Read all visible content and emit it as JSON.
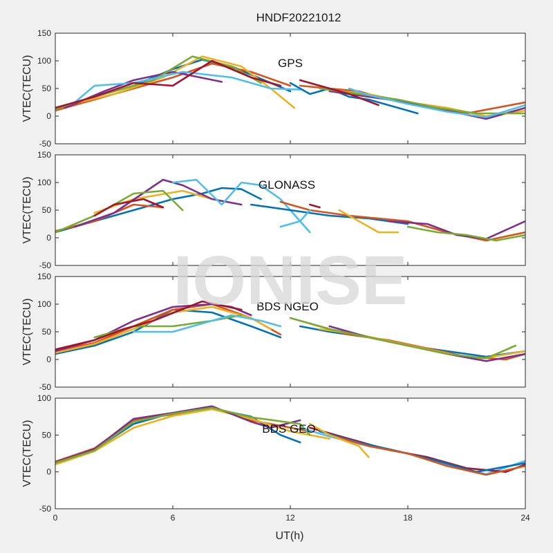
{
  "title": "HNDF20221012",
  "watermark": "IONISE",
  "xlabel": "UT(h)",
  "colors": [
    "#0072bd",
    "#d95319",
    "#edb120",
    "#7e2f8e",
    "#77ac30",
    "#4dbeee",
    "#a2142f"
  ],
  "chart_data": [
    {
      "type": "line",
      "label": "GPS",
      "ylabel": "VTEC(TECU)",
      "xlim": [
        0,
        24
      ],
      "ylim": [
        -50,
        150
      ],
      "xticks": [
        0,
        6,
        12,
        18,
        24
      ],
      "yticks": [
        -50,
        0,
        50,
        100,
        150
      ],
      "series": [
        {
          "x": [
            0,
            2,
            4,
            6,
            7.5,
            9,
            11,
            12
          ],
          "y": [
            12,
            35,
            55,
            85,
            102,
            90,
            60,
            45
          ]
        },
        {
          "x": [
            0,
            2,
            4,
            6,
            8,
            10,
            12
          ],
          "y": [
            10,
            30,
            50,
            70,
            95,
            80,
            55
          ]
        },
        {
          "x": [
            0,
            3,
            5.5,
            7.5,
            9.5,
            11,
            12.2
          ],
          "y": [
            15,
            40,
            70,
            108,
            90,
            50,
            15
          ]
        },
        {
          "x": [
            0.5,
            2.5,
            4,
            6,
            8.5
          ],
          "y": [
            15,
            45,
            65,
            80,
            62
          ]
        },
        {
          "x": [
            0,
            1,
            2.5,
            5,
            7,
            9,
            10.5
          ],
          "y": [
            12,
            25,
            40,
            65,
            108,
            90,
            60
          ]
        },
        {
          "x": [
            1,
            2,
            4,
            6.5,
            9,
            11,
            12.5
          ],
          "y": [
            25,
            55,
            60,
            80,
            70,
            50,
            48
          ]
        },
        {
          "x": [
            0,
            2,
            4,
            6,
            8,
            10,
            11.5
          ],
          "y": [
            15,
            35,
            60,
            55,
            100,
            70,
            55
          ]
        },
        {
          "x": [
            12,
            13,
            14,
            15,
            16,
            17,
            18.5
          ],
          "y": [
            60,
            40,
            50,
            35,
            30,
            20,
            5
          ]
        },
        {
          "x": [
            12.5,
            14,
            15.5,
            17,
            19,
            21,
            24
          ],
          "y": [
            55,
            50,
            45,
            30,
            20,
            5,
            25
          ]
        },
        {
          "x": [
            13,
            14.5,
            16,
            18,
            20,
            22,
            24
          ],
          "y": [
            60,
            45,
            40,
            25,
            15,
            0,
            10
          ]
        },
        {
          "x": [
            14,
            16,
            18,
            20,
            22,
            24
          ],
          "y": [
            45,
            35,
            25,
            10,
            -5,
            15
          ]
        },
        {
          "x": [
            13.5,
            15.5,
            17.5,
            19.5,
            21.5,
            24
          ],
          "y": [
            50,
            40,
            30,
            15,
            5,
            5
          ]
        },
        {
          "x": [
            15,
            16,
            17,
            18,
            20,
            22,
            24
          ],
          "y": [
            50,
            38,
            30,
            22,
            8,
            -2,
            20
          ]
        },
        {
          "x": [
            12.5,
            13.5,
            15,
            16.5
          ],
          "y": [
            65,
            55,
            40,
            20
          ]
        }
      ]
    },
    {
      "type": "line",
      "label": "GLONASS",
      "ylabel": "VTEC(TECU)",
      "xlim": [
        0,
        24
      ],
      "ylim": [
        -50,
        150
      ],
      "xticks": [
        0,
        6,
        12,
        18,
        24
      ],
      "yticks": [
        -50,
        0,
        50,
        100,
        150
      ],
      "series": [
        {
          "x": [
            0,
            2,
            4,
            6,
            7.5,
            8.5,
            9.5,
            10.5
          ],
          "y": [
            10,
            30,
            50,
            70,
            80,
            90,
            88,
            70
          ]
        },
        {
          "x": [
            0,
            2,
            4,
            5.5
          ],
          "y": [
            12,
            30,
            60,
            55
          ]
        },
        {
          "x": [
            2,
            4,
            6.5,
            8
          ],
          "y": [
            45,
            70,
            85,
            70
          ]
        },
        {
          "x": [
            1,
            3,
            5.5,
            6.5,
            8,
            9.5
          ],
          "y": [
            20,
            45,
            105,
            95,
            70,
            60
          ]
        },
        {
          "x": [
            0,
            2,
            4,
            5.5,
            6.5
          ],
          "y": [
            10,
            40,
            80,
            85,
            50
          ]
        },
        {
          "x": [
            6,
            7.2,
            8.5,
            9.5,
            10.5,
            11.5,
            13
          ],
          "y": [
            100,
            105,
            60,
            100,
            95,
            70,
            10
          ]
        },
        {
          "x": [
            2,
            3,
            4.5,
            5.5
          ],
          "y": [
            40,
            60,
            70,
            55
          ]
        },
        {
          "x": [
            10,
            12,
            14,
            16,
            18
          ],
          "y": [
            60,
            50,
            40,
            35,
            25
          ]
        },
        {
          "x": [
            11.5,
            13,
            15,
            16.5,
            18,
            20,
            22,
            24
          ],
          "y": [
            65,
            50,
            40,
            35,
            30,
            10,
            -5,
            10
          ]
        },
        {
          "x": [
            14.5,
            15.5,
            16.5,
            17.5
          ],
          "y": [
            50,
            30,
            10,
            10
          ]
        },
        {
          "x": [
            17,
            19,
            20.5,
            22,
            24
          ],
          "y": [
            30,
            25,
            5,
            -2,
            30
          ]
        },
        {
          "x": [
            18,
            19.5,
            21,
            22.5,
            24
          ],
          "y": [
            20,
            10,
            5,
            -5,
            5
          ]
        },
        {
          "x": [
            11.5,
            12.5,
            13
          ],
          "y": [
            20,
            30,
            50
          ]
        },
        {
          "x": [
            13,
            13.5
          ],
          "y": [
            60,
            55
          ]
        }
      ]
    },
    {
      "type": "line",
      "label": "BDS NGEO",
      "ylabel": "VTEC(TECU)",
      "xlim": [
        0,
        24
      ],
      "ylim": [
        -50,
        150
      ],
      "xticks": [
        0,
        6,
        12,
        18,
        24
      ],
      "yticks": [
        -50,
        0,
        50,
        100,
        150
      ],
      "series": [
        {
          "x": [
            0,
            2,
            4,
            6,
            8,
            10,
            11.5
          ],
          "y": [
            10,
            25,
            50,
            90,
            85,
            60,
            40
          ]
        },
        {
          "x": [
            0,
            2,
            4,
            6,
            8,
            10,
            11.5
          ],
          "y": [
            15,
            30,
            60,
            90,
            100,
            75,
            45
          ]
        },
        {
          "x": [
            0,
            2,
            4,
            6,
            8,
            10,
            11
          ],
          "y": [
            12,
            28,
            55,
            85,
            95,
            75,
            55
          ]
        },
        {
          "x": [
            0,
            2,
            4,
            6,
            8,
            9,
            10
          ],
          "y": [
            15,
            35,
            70,
            95,
            100,
            95,
            80
          ]
        },
        {
          "x": [
            2,
            4,
            6,
            8,
            9.5
          ],
          "y": [
            40,
            60,
            60,
            70,
            80
          ]
        },
        {
          "x": [
            4,
            6,
            8,
            9,
            10.5,
            11.5
          ],
          "y": [
            50,
            50,
            70,
            80,
            70,
            60
          ]
        },
        {
          "x": [
            0,
            2,
            3.5,
            5,
            7.5,
            9.5
          ],
          "y": [
            18,
            35,
            55,
            70,
            105,
            90
          ]
        },
        {
          "x": [
            12.5,
            14,
            16,
            18,
            20,
            22,
            24
          ],
          "y": [
            60,
            50,
            40,
            25,
            15,
            5,
            15
          ]
        },
        {
          "x": [
            13,
            15,
            17,
            19,
            21,
            23,
            24
          ],
          "y": [
            65,
            45,
            35,
            20,
            5,
            0,
            10
          ]
        },
        {
          "x": [
            13.5,
            15.5,
            17.5,
            19.5,
            21.5,
            24
          ],
          "y": [
            55,
            45,
            30,
            15,
            0,
            15
          ]
        },
        {
          "x": [
            14,
            16,
            18,
            20,
            22,
            24
          ],
          "y": [
            60,
            40,
            25,
            10,
            -3,
            10
          ]
        },
        {
          "x": [
            12,
            14,
            16,
            18,
            20,
            22,
            23.5
          ],
          "y": [
            75,
            55,
            40,
            25,
            10,
            2,
            25
          ]
        }
      ]
    },
    {
      "type": "line",
      "label": "BDS GEO",
      "ylabel": "VTEC(TECU)",
      "xlim": [
        0,
        24
      ],
      "ylim": [
        -50,
        100
      ],
      "xticks": [
        0,
        6,
        12,
        18,
        24
      ],
      "yticks": [
        -50,
        0,
        50,
        100
      ],
      "series": [
        {
          "x": [
            0,
            2,
            4,
            6,
            8,
            10,
            11.5,
            12.5
          ],
          "y": [
            12,
            30,
            65,
            80,
            86,
            75,
            50,
            40
          ]
        },
        {
          "x": [
            0,
            2,
            4,
            6,
            8,
            10,
            12,
            13
          ],
          "y": [
            14,
            32,
            70,
            78,
            88,
            70,
            60,
            55
          ]
        },
        {
          "x": [
            0,
            2,
            4,
            6,
            8,
            10,
            12,
            14
          ],
          "y": [
            10,
            28,
            60,
            76,
            85,
            72,
            55,
            45
          ]
        },
        {
          "x": [
            0,
            2,
            4,
            6,
            8,
            10,
            11,
            12.5
          ],
          "y": [
            13,
            31,
            72,
            80,
            89,
            68,
            60,
            70
          ]
        },
        {
          "x": [
            0,
            2,
            4,
            6,
            8,
            10,
            12.5,
            13
          ],
          "y": [
            12,
            29,
            68,
            79,
            87,
            74,
            65,
            50
          ]
        },
        {
          "x": [
            12.5,
            14,
            16,
            18,
            20,
            22,
            24
          ],
          "y": [
            60,
            48,
            35,
            25,
            10,
            -3,
            15
          ]
        },
        {
          "x": [
            13,
            15,
            17,
            19,
            21,
            23,
            24
          ],
          "y": [
            60,
            45,
            30,
            20,
            5,
            0,
            10
          ]
        },
        {
          "x": [
            13.5,
            15.5,
            17.5,
            19.5,
            21.5,
            24
          ],
          "y": [
            55,
            40,
            28,
            15,
            0,
            12
          ]
        },
        {
          "x": [
            14,
            16,
            18,
            20,
            22,
            24
          ],
          "y": [
            50,
            35,
            25,
            8,
            -4,
            8
          ]
        },
        {
          "x": [
            13,
            14,
            15.5,
            16
          ],
          "y": [
            65,
            50,
            35,
            20
          ]
        }
      ]
    }
  ]
}
